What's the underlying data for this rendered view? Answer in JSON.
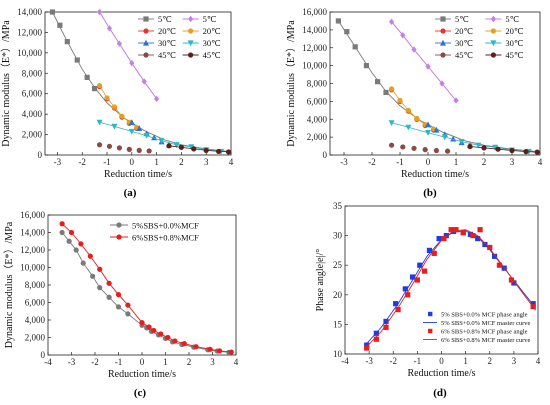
{
  "colors": {
    "5C": "#7a7a7a",
    "20C": "#e8352e",
    "30C": "#2f6fd6",
    "45C": "#8b4a44",
    "fit5C": "#c77ee6",
    "fit20C": "#e6a020",
    "fit30C": "#2bb8c8",
    "fit45C": "#5c1f1a",
    "blue": "#1f3de0",
    "red": "#e61e1e"
  },
  "chart_data": [
    {
      "panel_label": "(a)",
      "type": "scatter",
      "xlabel": "Reduction time/s",
      "ylabel": "Dynamic modulus（E*）/MPa",
      "xlim": [
        -3.5,
        4
      ],
      "ylim": [
        0,
        14000
      ],
      "xticks": [
        -3,
        -2,
        -1,
        0,
        1,
        2,
        3,
        4
      ],
      "yticks": [
        0,
        2000,
        4000,
        6000,
        8000,
        10000,
        12000,
        14000
      ],
      "ytick_labels": [
        "0",
        "2,000",
        "4,000",
        "6,000",
        "8,000",
        "10,000",
        "12,000",
        "14,000"
      ],
      "legend_position": "top-right",
      "series": [
        {
          "name": "5℃",
          "role": "data",
          "color_key": "5C",
          "marker": "square",
          "x": [
            -3.2,
            -2.9,
            -2.6,
            -2.2,
            -1.8,
            -1.5
          ],
          "y": [
            14000,
            12700,
            11100,
            9300,
            7600,
            6500
          ]
        },
        {
          "name": "5℃",
          "role": "master",
          "color_key": "fit5C",
          "marker": "diamond",
          "x": [
            -1.3,
            -0.9,
            -0.5,
            0.0,
            0.5,
            1.0
          ],
          "y": [
            14000,
            12400,
            10900,
            9000,
            7200,
            5500
          ]
        },
        {
          "name": "20℃",
          "role": "data",
          "color_key": "20C",
          "marker": "circle",
          "x": [
            -1.3,
            -1.0,
            -0.7,
            -0.4,
            -0.1,
            0.2
          ],
          "y": [
            6700,
            5500,
            4600,
            3700,
            3100,
            2600
          ]
        },
        {
          "name": "20℃",
          "role": "master",
          "color_key": "fit20C",
          "marker": "circle",
          "x": [
            -1.3,
            -1.0,
            -0.7,
            -0.4,
            -0.1,
            0.2
          ],
          "y": [
            6800,
            5600,
            4700,
            3800,
            3200,
            2700
          ]
        },
        {
          "name": "30℃",
          "role": "data",
          "color_key": "30C",
          "marker": "triangle",
          "x": [
            0.0,
            0.3,
            0.6,
            0.9,
            1.2,
            1.5
          ],
          "y": [
            3200,
            2600,
            2100,
            1700,
            1300,
            1000
          ]
        },
        {
          "name": "30℃",
          "role": "master",
          "color_key": "fit30C",
          "marker": "triangle-down",
          "x": [
            -1.3,
            -0.7,
            0.0,
            0.6,
            1.2,
            1.8,
            2.4,
            3.0,
            3.6
          ],
          "y": [
            3200,
            2800,
            2300,
            1900,
            1400,
            1000,
            800,
            500,
            350
          ]
        },
        {
          "name": "45℃",
          "role": "data",
          "color_key": "45C",
          "marker": "circle",
          "x": [
            -1.3,
            -0.9,
            -0.5,
            -0.1,
            0.3,
            0.7
          ],
          "y": [
            1000,
            850,
            700,
            550,
            450,
            400
          ]
        },
        {
          "name": "45℃",
          "role": "master",
          "color_key": "fit45C",
          "marker": "circle",
          "x": [
            1.5,
            2.0,
            2.5,
            3.0,
            3.5,
            3.9
          ],
          "y": [
            900,
            750,
            600,
            450,
            350,
            300
          ]
        }
      ],
      "curves": [
        {
          "color_key": "5C",
          "x": [
            -3.2,
            -2.6,
            -2.0,
            -1.5,
            -1.0,
            -0.3,
            0.5,
            1.3,
            2.0,
            3.0,
            3.9
          ],
          "y": [
            14000,
            11100,
            8400,
            6600,
            5100,
            3600,
            2400,
            1500,
            1000,
            600,
            350
          ]
        },
        {
          "color_key": "fit5C",
          "x": [
            -1.3,
            -0.9,
            -0.5,
            0.0,
            0.5,
            1.0
          ],
          "y": [
            14000,
            12400,
            10900,
            9000,
            7200,
            5500
          ]
        }
      ]
    },
    {
      "panel_label": "(b)",
      "type": "scatter",
      "xlabel": "Reduction time/s",
      "ylabel": "Dynamic modulus（E*）/MPa",
      "xlim": [
        -3.5,
        4
      ],
      "ylim": [
        0,
        16000
      ],
      "xticks": [
        -3,
        -2,
        -1,
        0,
        1,
        2,
        3,
        4
      ],
      "yticks": [
        0,
        2000,
        4000,
        6000,
        8000,
        10000,
        12000,
        14000,
        16000
      ],
      "ytick_labels": [
        "0",
        "2,000",
        "4,000",
        "6,000",
        "8,000",
        "10,000",
        "12,000",
        "14,000",
        "16,000"
      ],
      "legend_position": "top-right",
      "series": [
        {
          "name": "5℃",
          "role": "data",
          "color_key": "5C",
          "marker": "square",
          "x": [
            -3.2,
            -2.9,
            -2.6,
            -2.2,
            -1.8,
            -1.5
          ],
          "y": [
            15000,
            13800,
            12100,
            10000,
            8200,
            7000
          ]
        },
        {
          "name": "5℃",
          "role": "master",
          "color_key": "fit5C",
          "marker": "diamond",
          "x": [
            -1.3,
            -0.9,
            -0.5,
            0.0,
            0.5,
            1.0
          ],
          "y": [
            14900,
            13400,
            11800,
            9900,
            8000,
            6100
          ]
        },
        {
          "name": "20℃",
          "role": "data",
          "color_key": "20C",
          "marker": "circle",
          "x": [
            -1.3,
            -1.0,
            -0.7,
            -0.4,
            -0.1,
            0.2
          ],
          "y": [
            7300,
            6000,
            4900,
            4000,
            3300,
            2800
          ]
        },
        {
          "name": "20℃",
          "role": "master",
          "color_key": "fit20C",
          "marker": "circle",
          "x": [
            -1.3,
            -1.0,
            -0.7,
            -0.4,
            -0.1,
            0.2
          ],
          "y": [
            7400,
            6100,
            5000,
            4100,
            3400,
            2900
          ]
        },
        {
          "name": "30℃",
          "role": "data",
          "color_key": "30C",
          "marker": "triangle",
          "x": [
            0.0,
            0.3,
            0.6,
            0.9,
            1.2,
            1.5
          ],
          "y": [
            3400,
            2800,
            2300,
            1800,
            1400,
            1100
          ]
        },
        {
          "name": "30℃",
          "role": "master",
          "color_key": "fit30C",
          "marker": "triangle-down",
          "x": [
            -1.3,
            -0.7,
            0.0,
            0.6,
            1.2,
            1.8,
            2.4,
            3.0,
            3.6
          ],
          "y": [
            3600,
            3100,
            2500,
            2000,
            1500,
            1100,
            850,
            550,
            380
          ]
        },
        {
          "name": "45℃",
          "role": "data",
          "color_key": "45C",
          "marker": "circle",
          "x": [
            -1.3,
            -0.9,
            -0.5,
            -0.1,
            0.3,
            0.7
          ],
          "y": [
            1100,
            900,
            750,
            600,
            500,
            430
          ]
        },
        {
          "name": "45℃",
          "role": "master",
          "color_key": "fit45C",
          "marker": "circle",
          "x": [
            1.5,
            2.0,
            2.5,
            3.0,
            3.5,
            3.9
          ],
          "y": [
            950,
            800,
            650,
            500,
            380,
            320
          ]
        }
      ],
      "curves": [
        {
          "color_key": "5C",
          "x": [
            -3.2,
            -2.6,
            -2.0,
            -1.5,
            -1.0,
            -0.3,
            0.5,
            1.3,
            2.0,
            3.0,
            3.9
          ],
          "y": [
            15000,
            12100,
            9200,
            7100,
            5500,
            3900,
            2600,
            1600,
            1100,
            650,
            380
          ]
        },
        {
          "color_key": "fit5C",
          "x": [
            -1.3,
            -0.9,
            -0.5,
            0.0,
            0.5,
            1.0
          ],
          "y": [
            14900,
            13400,
            11800,
            9900,
            8000,
            6100
          ]
        }
      ]
    },
    {
      "panel_label": "(c)",
      "type": "scatter",
      "xlabel": "Reduction time/s",
      "ylabel": "Dynamic modulus（E*）/MPa",
      "xlim": [
        -4,
        4
      ],
      "ylim": [
        0,
        16000
      ],
      "xticks": [
        -4,
        -3,
        -2,
        -1,
        0,
        1,
        2,
        3,
        4
      ],
      "yticks": [
        0,
        2000,
        4000,
        6000,
        8000,
        10000,
        12000,
        14000,
        16000
      ],
      "ytick_labels": [
        "0",
        "2,000",
        "4,000",
        "6,000",
        "8,000",
        "10,000",
        "12,000",
        "14,000",
        "16,000"
      ],
      "legend_position": "top-right",
      "series": [
        {
          "name": "5%SBS+0.0%MCF",
          "color_key": "5C",
          "marker": "circle",
          "x": [
            -3.4,
            -3.1,
            -2.8,
            -2.5,
            -2.1,
            -1.8,
            -1.4,
            -1.0,
            -0.6,
            0.0,
            0.2,
            0.4,
            0.7,
            1.0,
            1.3,
            1.7,
            2.2,
            2.8,
            3.2,
            3.7
          ],
          "y": [
            14000,
            13000,
            12000,
            10500,
            9000,
            7700,
            6600,
            5500,
            4700,
            3400,
            3100,
            2700,
            2300,
            1900,
            1500,
            1200,
            900,
            600,
            450,
            300
          ]
        },
        {
          "name": "6%SBS+0.8%MCF",
          "color_key": "red",
          "marker": "circle",
          "x": [
            -3.4,
            -3.0,
            -2.6,
            -2.2,
            -1.8,
            -1.4,
            -1.0,
            -0.6,
            0.0,
            0.3,
            0.5,
            0.8,
            1.1,
            1.4,
            1.8,
            2.3,
            2.9,
            3.3,
            3.8
          ],
          "y": [
            15000,
            14000,
            12700,
            11300,
            9800,
            8200,
            6900,
            5700,
            3700,
            3200,
            2800,
            2400,
            2000,
            1600,
            1300,
            950,
            650,
            480,
            330
          ]
        }
      ]
    },
    {
      "panel_label": "(d)",
      "type": "scatter",
      "xlabel": "Reduction time/s",
      "ylabel": "Phase angle|e|/°",
      "xlim": [
        -4,
        4
      ],
      "ylim": [
        10,
        35
      ],
      "xticks": [
        -4,
        -3,
        -2,
        -1,
        0,
        1,
        2,
        3,
        4
      ],
      "yticks": [
        10,
        15,
        20,
        25,
        30,
        35
      ],
      "legend_position": "bottom-right",
      "series": [
        {
          "name": "5% SBS+0.0% MCF phase angle",
          "color_key": "blue",
          "marker": "square",
          "x": [
            -3.1,
            -2.7,
            -2.3,
            -1.9,
            -1.5,
            -1.2,
            -0.9,
            -0.5,
            -0.1,
            0.2,
            0.5,
            0.9,
            1.2,
            1.5,
            1.8,
            2.2,
            2.6,
            3.0,
            3.8
          ],
          "y": [
            11.5,
            13.5,
            15.5,
            18.5,
            21.0,
            23.0,
            25.0,
            27.5,
            29.5,
            30.0,
            30.7,
            30.5,
            30.2,
            29.5,
            28.5,
            26.5,
            24.5,
            22.0,
            18.5
          ]
        },
        {
          "name": "5% SBS+0.0% MCF master curve",
          "color_key": "blue",
          "marker": "line",
          "x": [
            -3.2,
            -2.5,
            -1.8,
            -1.2,
            -0.6,
            0.0,
            0.5,
            1.0,
            1.5,
            2.0,
            2.6,
            3.2,
            3.9
          ],
          "y": [
            11.3,
            14.5,
            18.5,
            22.5,
            26.5,
            29.3,
            30.6,
            30.8,
            29.8,
            27.6,
            24.5,
            21.4,
            17.8
          ]
        },
        {
          "name": "6% SBS+0.8% MCF phase angle",
          "color_key": "red",
          "marker": "square",
          "x": [
            -3.1,
            -2.7,
            -2.3,
            -1.8,
            -1.4,
            -1.0,
            -0.7,
            -0.3,
            0.1,
            0.4,
            0.6,
            0.9,
            1.3,
            1.6,
            2.0,
            2.4,
            2.9,
            3.8
          ],
          "y": [
            11.0,
            12.5,
            14.5,
            17.5,
            20.0,
            22.5,
            24.0,
            27.0,
            29.5,
            31.0,
            31.0,
            30.5,
            30.0,
            31.0,
            28.0,
            25.0,
            22.5,
            18.0
          ]
        },
        {
          "name": "6% SBS+0.8% MCF master curve",
          "color_key": "red",
          "marker": "line",
          "x": [
            -3.2,
            -2.5,
            -1.8,
            -1.2,
            -0.6,
            0.0,
            0.5,
            1.0,
            1.5,
            2.0,
            2.6,
            3.2,
            3.9
          ],
          "y": [
            10.8,
            13.8,
            17.8,
            21.8,
            26.0,
            29.2,
            30.8,
            31.0,
            30.0,
            27.8,
            24.6,
            21.2,
            17.4
          ]
        }
      ]
    }
  ]
}
